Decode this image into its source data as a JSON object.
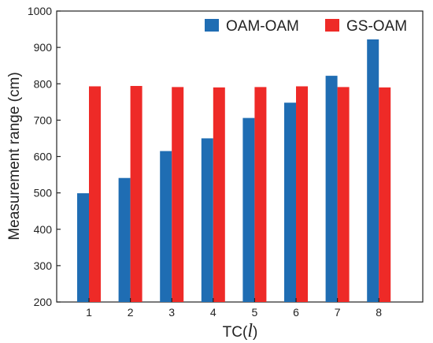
{
  "chart_data": {
    "type": "bar",
    "categories": [
      "1",
      "2",
      "3",
      "4",
      "5",
      "6",
      "7",
      "8"
    ],
    "series": [
      {
        "name": "OAM-OAM",
        "values": [
          499,
          541,
          615,
          650,
          706,
          748,
          822,
          922
        ],
        "color": "#1f6db3"
      },
      {
        "name": "GS-OAM",
        "values": [
          793,
          794,
          791,
          790,
          791,
          793,
          791,
          790
        ],
        "color": "#ee2a27"
      }
    ],
    "ylabel": "Measurement range (cm)",
    "xlabel_prefix": "TC(",
    "xlabel_symbol": "l",
    "xlabel_suffix": ")",
    "ylim": [
      200,
      1000
    ],
    "yticks": [
      200,
      300,
      400,
      500,
      600,
      700,
      800,
      900,
      1000
    ],
    "legend_position": "top-right",
    "grid": false
  }
}
